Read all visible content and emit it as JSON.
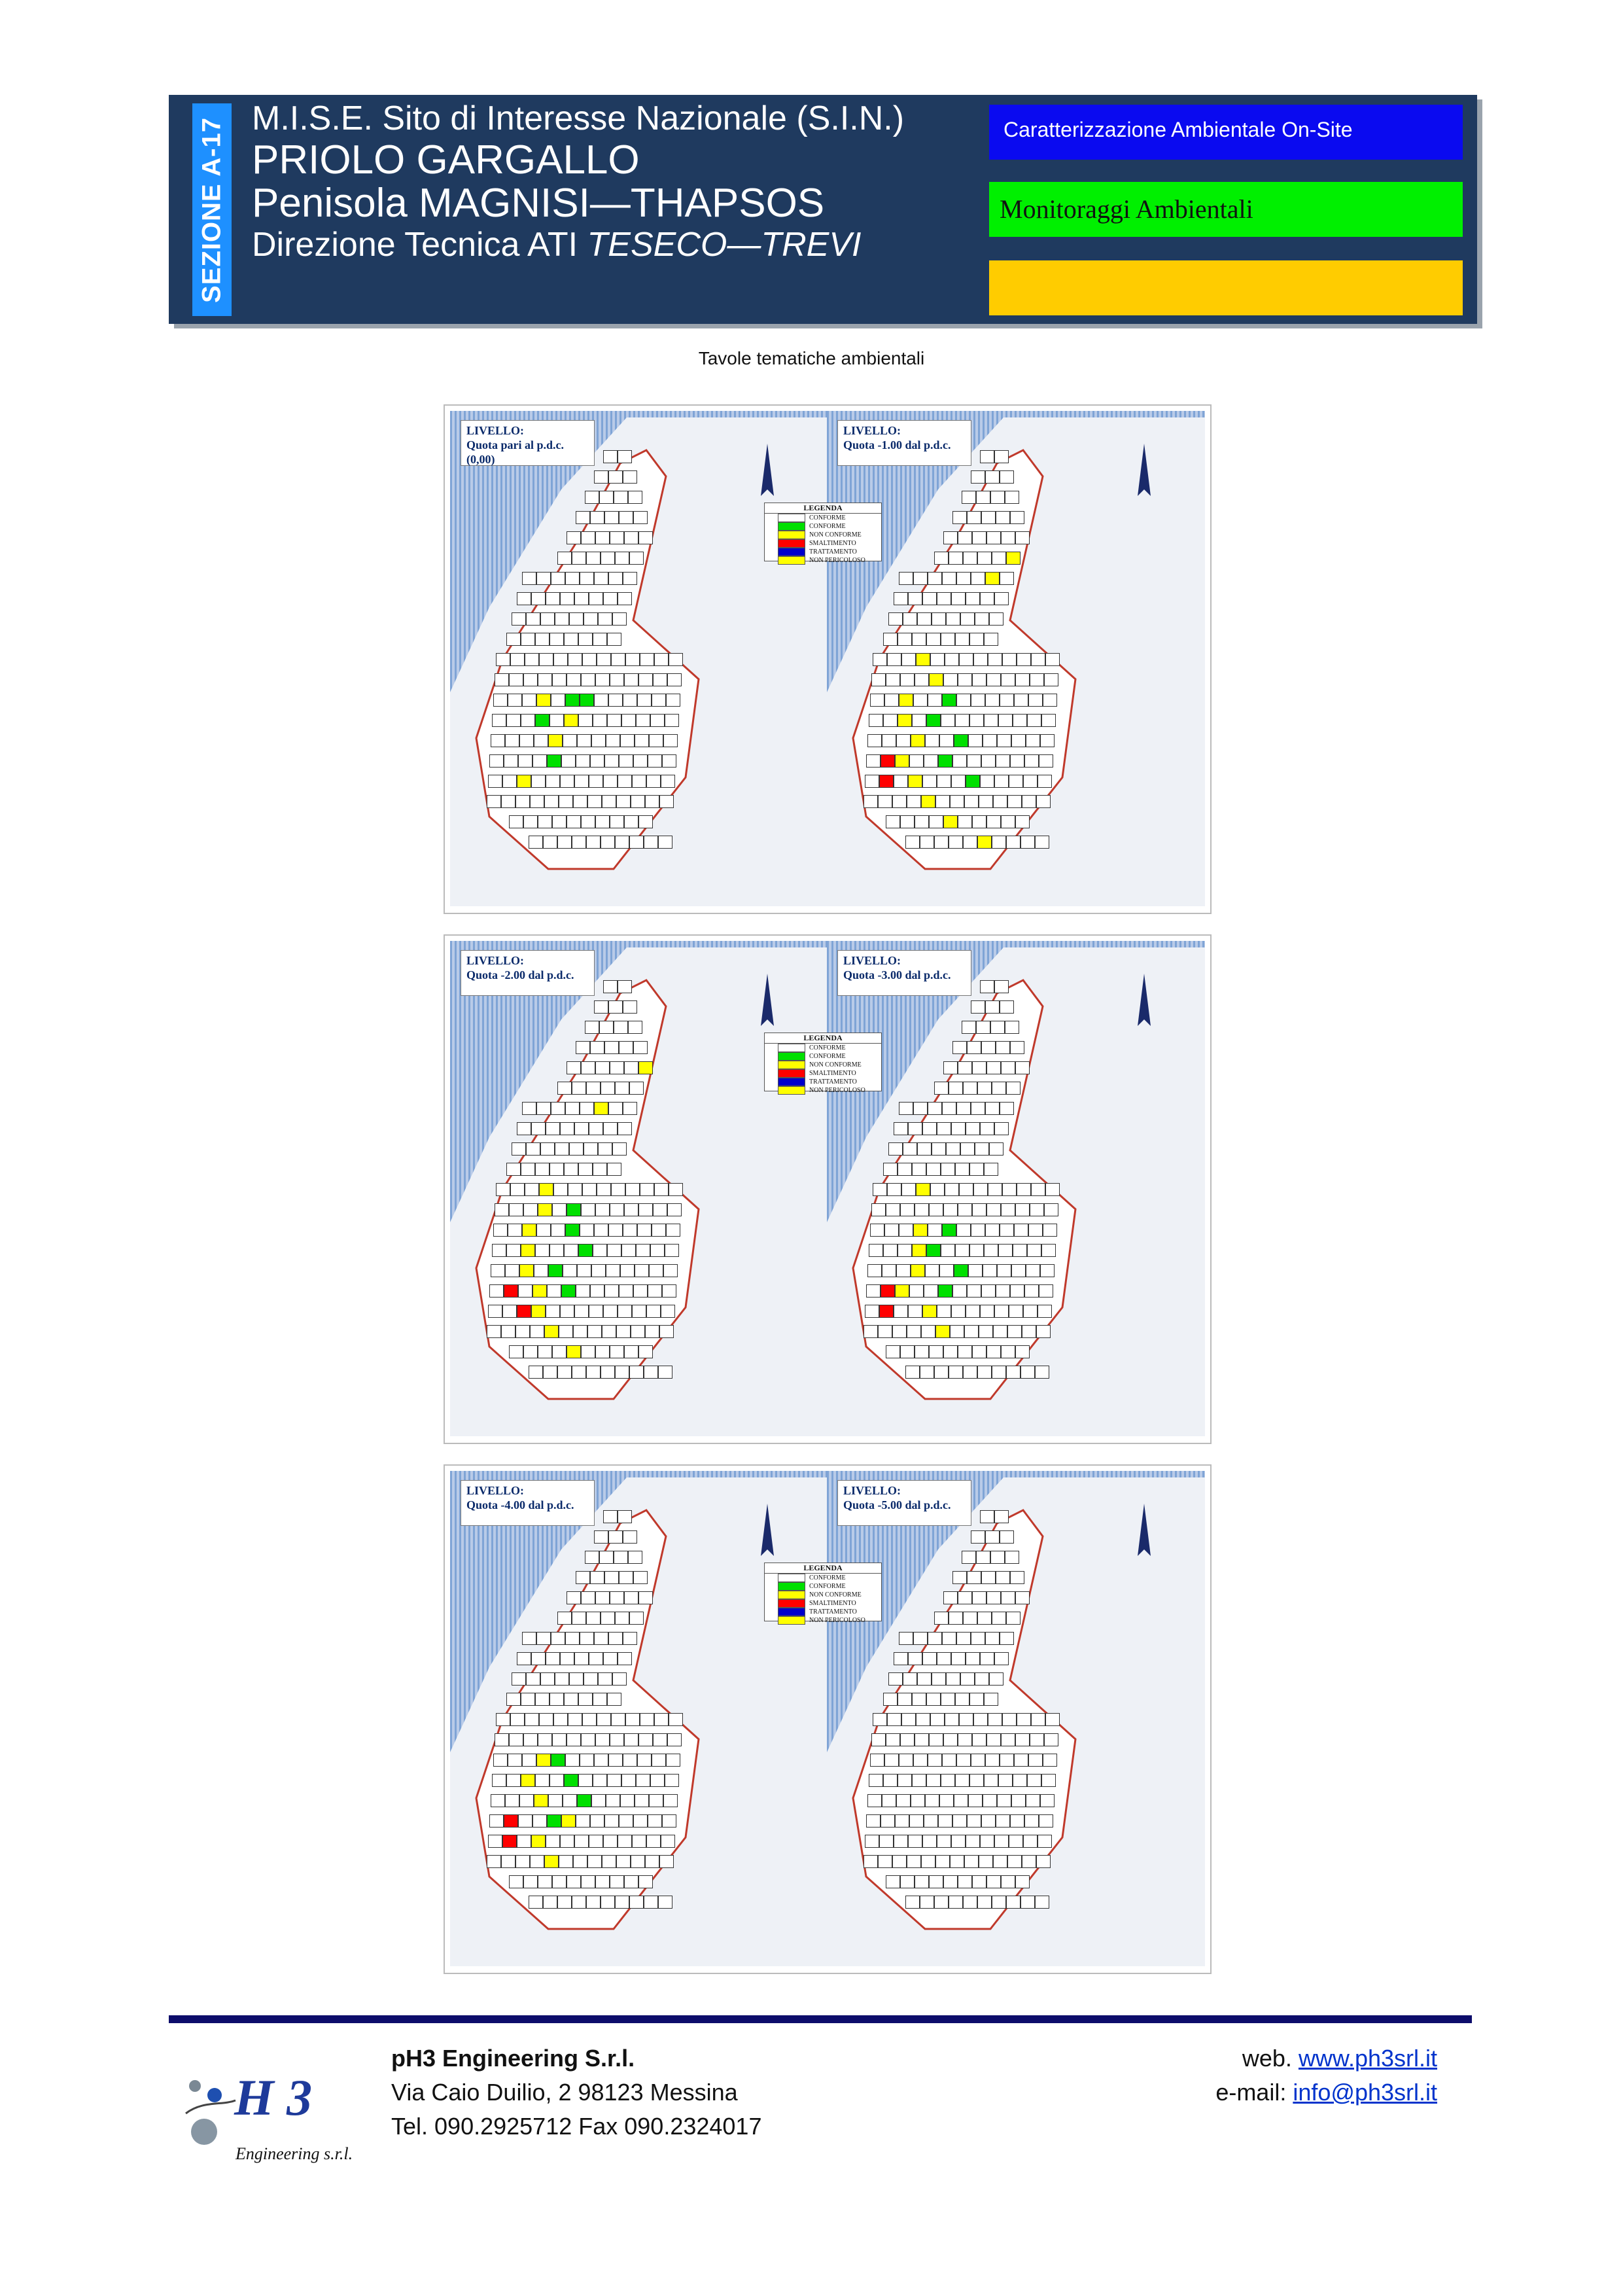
{
  "header": {
    "section_label": "SEZIONE A-17",
    "line1": "M.I.S.E. Sito di Interesse Nazionale (S.I.N.)",
    "line2": "PRIOLO GARGALLO",
    "line3": "Penisola MAGNISI—THAPSOS",
    "line4_prefix": "Direzione Tecnica ATI ",
    "line4_italic": "TESECO—TREVI",
    "box_blue_label": "Caratterizzazione Ambientale On-Site",
    "box_green_label": "Monitoraggi Ambientali",
    "box_yellow_label": "",
    "colors": {
      "header_bg": "#1f3a5f",
      "section_bg": "#1e90ff",
      "blue": "#0a0af0",
      "green": "#00f000",
      "yellow": "#ffcc00"
    }
  },
  "subtitle": "Tavole tematiche ambientali",
  "figure": {
    "maps": [
      {
        "title_l1": "LIVELLO:",
        "title_l2": "Quota pari al p.d.c.(0,00)",
        "legend": true
      },
      {
        "title_l1": "LIVELLO:",
        "title_l2": "Quota -1.00 dal p.d.c.",
        "legend": false
      },
      {
        "title_l1": "LIVELLO:",
        "title_l2": "Quota  -2.00 dal p.d.c.",
        "legend": true
      },
      {
        "title_l1": "LIVELLO:",
        "title_l2": "Quota -3.00 dal p.d.c.",
        "legend": false
      },
      {
        "title_l1": "LIVELLO:",
        "title_l2": "Quota  -4.00 dal p.d.c.",
        "legend": true
      },
      {
        "title_l1": "LIVELLO:",
        "title_l2": "Quota -5.00 dal p.d.c.",
        "legend": false
      }
    ],
    "legend_title": "LEGENDA",
    "legend_items": [
      {
        "label": "CONFORME",
        "color": "#ffffff"
      },
      {
        "label": "CONFORME",
        "color": "#00e000"
      },
      {
        "label": "NON CONFORME",
        "color": "#ffff00"
      },
      {
        "label": "SMALTIMENTO",
        "color": "#ff0000"
      },
      {
        "label": "TRATTAMENTO",
        "color": "#0000cc"
      },
      {
        "label": "NON PERICOLOSO",
        "color": "#ffff00"
      }
    ],
    "cell_colors": {
      "white": "#ffffff",
      "green": "#00e000",
      "yellow": "#ffff00",
      "red": "#ff0000",
      "blue": "#0000cc"
    }
  },
  "footer": {
    "company": "pH3 Engineering S.r.l.",
    "address": "Via Caio Duilio, 2 98123 Messina",
    "phone": "Tel. 090.2925712 Fax 090.2324017",
    "web_label": "web.",
    "web_link": "www.ph3srl.it",
    "email_label": "e-mail:",
    "email_link": "info@ph3srl.it",
    "logo_text": "H 3",
    "logo_sub": "Engineering s.r.l.",
    "bar_color": "#0d0d6b"
  }
}
